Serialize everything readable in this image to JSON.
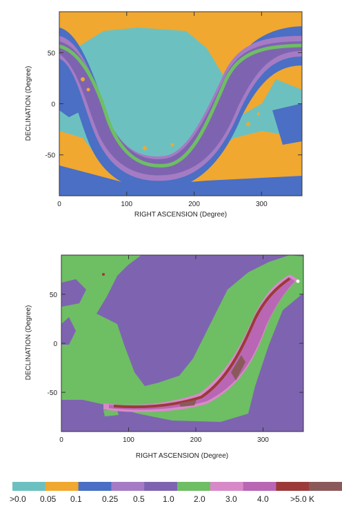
{
  "chart_data": [
    {
      "type": "heatmap",
      "xlabel": "RIGHT ASCENSION (Degree)",
      "ylabel": "DECLINATION (Degree)",
      "xlim": [
        0,
        360
      ],
      "ylim": [
        -90,
        90
      ],
      "x_ticks": [
        "0",
        "100",
        "200",
        "300"
      ],
      "y_ticks": [
        "50",
        "0",
        "-50"
      ],
      "x_tick_values": [
        0,
        100,
        200,
        300
      ],
      "y_tick_values": [
        50,
        0,
        -50
      ],
      "grid": false
    },
    {
      "type": "heatmap",
      "xlabel": "RIGHT ASCENSION (Degree)",
      "ylabel": "DECLINATION (Degree)",
      "xlim": [
        0,
        360
      ],
      "ylim": [
        -90,
        90
      ],
      "x_ticks": [
        "0",
        "100",
        "200",
        "300"
      ],
      "y_ticks": [
        "50",
        "0",
        "-50"
      ],
      "x_tick_values": [
        0,
        100,
        200,
        300
      ],
      "y_tick_values": [
        50,
        0,
        -50
      ],
      "grid": false
    }
  ],
  "colorbar": {
    "colors": [
      "#6cc1c0",
      "#f0a830",
      "#4a6fc4",
      "#a57cc4",
      "#7e64b0",
      "#6ebe64",
      "#d88ac8",
      "#b967b4",
      "#9c3a3a",
      "#8a5a5a"
    ],
    "labels": [
      ">0.0",
      "0.05",
      "0.1",
      "0.25",
      "0.5",
      "1.0",
      "2.0",
      "3.0",
      "4.0",
      ">5.0 K"
    ]
  }
}
